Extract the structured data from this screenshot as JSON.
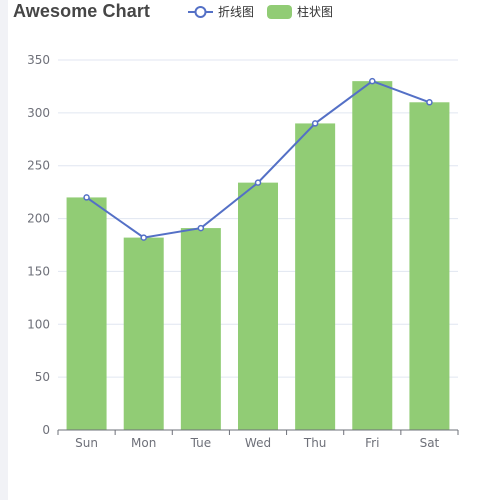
{
  "chart_data": {
    "type": "bar",
    "title": "Awesome Chart",
    "categories": [
      "Sun",
      "Mon",
      "Tue",
      "Wed",
      "Thu",
      "Fri",
      "Sat"
    ],
    "series": [
      {
        "name": "折线图",
        "type": "line",
        "values": [
          220,
          182,
          191,
          234,
          290,
          330,
          310
        ],
        "color": "#5470c6"
      },
      {
        "name": "柱状图",
        "type": "bar",
        "values": [
          220,
          182,
          191,
          234,
          290,
          330,
          310
        ],
        "color": "#91cc75"
      }
    ],
    "ylim": [
      0,
      350
    ],
    "yticks": [
      0,
      50,
      100,
      150,
      200,
      250,
      300,
      350
    ],
    "grid": true,
    "legend_position": "top-center",
    "xlabel": "",
    "ylabel": ""
  },
  "colors": {
    "axis": "#6e7079",
    "grid": "#e0e6f1",
    "title": "#464646"
  }
}
